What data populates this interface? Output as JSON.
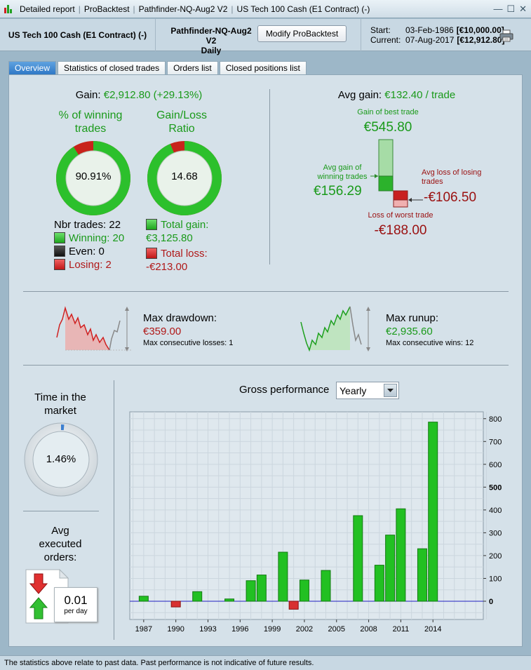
{
  "titlebar": {
    "crumbs": [
      "Detailed report",
      "ProBacktest",
      "Pathfinder-NQ-Aug2 V2",
      "US Tech 100 Cash (E1 Contract) (-)"
    ]
  },
  "header": {
    "instrument": "US Tech 100 Cash (E1 Contract) (-)",
    "strategy_name": "Pathfinder-NQ-Aug2 V2",
    "timeframe": "Daily",
    "modify_label": "Modify ProBacktest",
    "start_label": "Start:",
    "start_date": "03-Feb-1986",
    "start_value": "[€10,000.00]",
    "current_label": "Current:",
    "current_date": "07-Aug-2017",
    "current_value": "[€12,912.80]"
  },
  "tabs": [
    "Overview",
    "Statistics of closed trades",
    "Orders list",
    "Closed positions list"
  ],
  "overview": {
    "gain_label": "Gain:",
    "gain_value": "€2,912.80 (+29.13%)",
    "winning_title_1": "% of winning",
    "winning_title_2": "trades",
    "winning_pct_text": "90.91%",
    "winning_fraction": 0.9091,
    "ratio_title_1": "Gain/Loss",
    "ratio_title_2": "Ratio",
    "ratio_text": "14.68",
    "ratio_fraction": 0.936,
    "nbr_trades": "Nbr trades: 22",
    "winning": "Winning: 20",
    "even": "Even: 0",
    "losing": "Losing: 2",
    "total_gain_label": "Total gain:",
    "total_gain_value": "€3,125.80",
    "total_loss_label": "Total loss:",
    "total_loss_value": "-€213.00",
    "avg_gain_label": "Avg gain:",
    "avg_gain_value": "€132.40 / trade",
    "best_trade_label": "Gain of best trade",
    "best_trade_value": "€545.80",
    "avg_win_label_1": "Avg gain of",
    "avg_win_label_2": "winning trades",
    "avg_win_value": "€156.29",
    "avg_loss_label_1": "Avg loss of losing",
    "avg_loss_label_2": "trades",
    "avg_loss_value": "-€106.50",
    "worst_trade_label": "Loss of worst trade",
    "worst_trade_value": "-€188.00",
    "max_drawdown_label": "Max drawdown:",
    "max_drawdown_value": "€359.00",
    "max_consec_losses": "Max consecutive losses: 1",
    "max_runup_label": "Max runup:",
    "max_runup_value": "€2,935.60",
    "max_consec_wins": "Max consecutive wins: 12",
    "time_market_1": "Time in the",
    "time_market_2": "market",
    "time_market_value": "1.46%",
    "time_market_fraction": 0.0146,
    "avg_orders_1": "Avg",
    "avg_orders_2": "executed",
    "avg_orders_3": "orders:",
    "avg_orders_value": "0.01",
    "avg_orders_unit": "per day",
    "gross_perf_label": "Gross performance",
    "period_selected": "Yearly"
  },
  "colors": {
    "gain_green": "#1a9a1a",
    "loss_red": "#b01818",
    "bar_green": "#22c022",
    "bar_red": "#d83030",
    "zero_line": "#2020c0"
  },
  "chart_data": {
    "type": "bar",
    "x": [
      1987,
      1990,
      1992,
      1995,
      1997,
      1998,
      2000,
      2001,
      2002,
      2004,
      2007,
      2009,
      2010,
      2011,
      2013,
      2014
    ],
    "values": [
      22,
      -25,
      42,
      10,
      90,
      115,
      215,
      -35,
      93,
      135,
      375,
      158,
      290,
      405,
      230,
      785
    ],
    "x_ticks": [
      "1987",
      "1990",
      "1993",
      "1996",
      "1999",
      "2002",
      "2005",
      "2008",
      "2011",
      "2014"
    ],
    "y_ticks": [
      "0",
      "100",
      "200",
      "300",
      "400",
      "500",
      "600",
      "700",
      "800"
    ],
    "xlim": [
      1985.7,
      2018.7
    ],
    "ylim": [
      -80,
      830
    ],
    "grid": true,
    "y_axis_side": "right"
  },
  "footer": "The statistics above relate to past data. Past performance is not indicative of future results."
}
